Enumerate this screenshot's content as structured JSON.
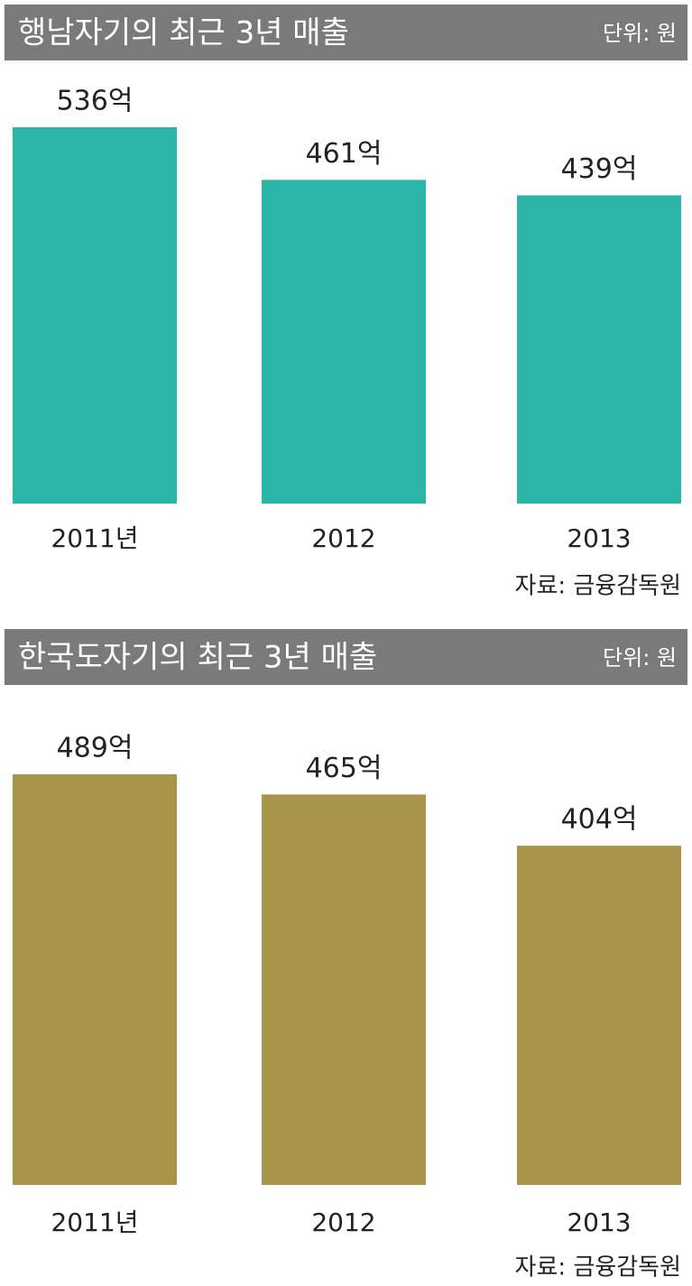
{
  "chart_data": [
    {
      "type": "bar",
      "title": "행남자기의 최근 3년 매출",
      "unit": "단위: 원",
      "source": "자료: 금융감독원",
      "categories": [
        "2011년",
        "2012",
        "2013"
      ],
      "values": [
        536,
        461,
        439
      ],
      "value_labels": [
        "536억",
        "461억",
        "439억"
      ],
      "color": "#2bb5a8"
    },
    {
      "type": "bar",
      "title": "한국도자기의 최근 3년 매출",
      "unit": "단위: 원",
      "source": "자료: 금융감독원",
      "categories": [
        "2011년",
        "2012",
        "2013"
      ],
      "values": [
        489,
        465,
        404
      ],
      "value_labels": [
        "489억",
        "465억",
        "404억"
      ],
      "color": "#a8954a"
    }
  ]
}
